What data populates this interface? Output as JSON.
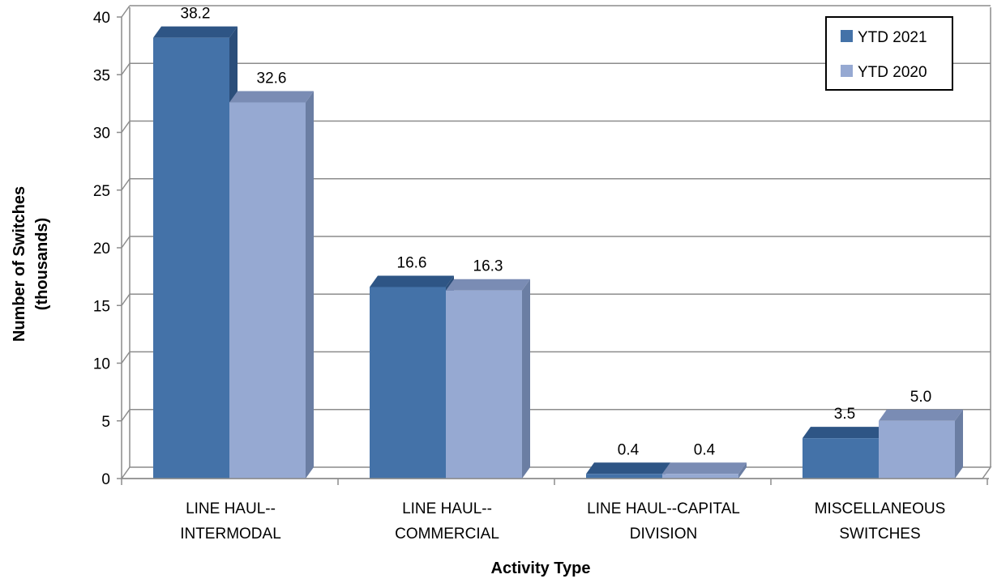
{
  "chart_data": {
    "type": "bar",
    "style": "3d-clustered-column",
    "categories": [
      [
        "LINE HAUL--",
        "INTERMODAL"
      ],
      [
        "LINE HAUL--",
        "COMMERCIAL"
      ],
      [
        "LINE HAUL--CAPITAL",
        "DIVISION"
      ],
      [
        "MISCELLANEOUS",
        "SWITCHES"
      ]
    ],
    "series": [
      {
        "name": "YTD 2021",
        "values": [
          38.2,
          16.6,
          0.4,
          3.5
        ],
        "labels": [
          "38.2",
          "16.6",
          "0.4",
          "3.5"
        ],
        "color": "#4472A8",
        "top_color": "#2E5585",
        "side_color": "#2B4E7A"
      },
      {
        "name": "YTD 2020",
        "values": [
          32.6,
          16.3,
          0.4,
          5.0
        ],
        "labels": [
          "32.6",
          "16.3",
          "0.4",
          "5.0"
        ],
        "color": "#96A9D2",
        "top_color": "#7A8CB4",
        "side_color": "#6B7EA3"
      }
    ],
    "xlabel": "Activity Type",
    "ylabel": [
      "Number of Switches",
      "(thousands)"
    ],
    "ylim": [
      0,
      40
    ],
    "yticks": [
      0,
      5,
      10,
      15,
      20,
      25,
      30,
      35,
      40
    ],
    "grid": true,
    "legend_position": "top-right"
  }
}
